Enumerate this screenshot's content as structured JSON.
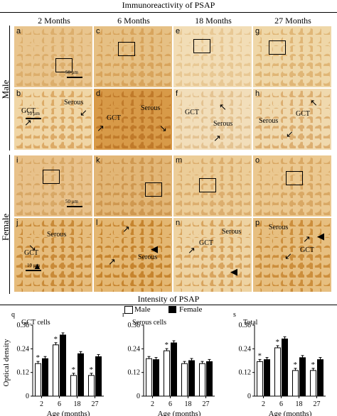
{
  "figure": {
    "top_title": "Immunoreactivity of PSAP",
    "columns": [
      "2 Months",
      "6 Months",
      "18 Months",
      "27 Months"
    ],
    "rows": [
      "Male",
      "Female"
    ],
    "panels": {
      "a": "a",
      "b": "b",
      "c": "c",
      "d": "d",
      "e": "e",
      "f": "f",
      "g": "g",
      "h": "h",
      "i": "i",
      "j": "j",
      "k": "k",
      "l": "l",
      "m": "m",
      "n": "n",
      "o": "o",
      "p": "p"
    },
    "tissue_labels": {
      "b_gct": "GCT",
      "b_serous": "Serous",
      "d_gct": "GCT",
      "d_serous": "Serous",
      "f_gct": "GCT",
      "f_serous": "Serous",
      "h_serous": "Serous",
      "h_gct": "GCT",
      "j_serous": "Serous",
      "j_gct": "GCT",
      "l_serous": "Serous",
      "n_serous": "Serous",
      "n_gct": "GCT",
      "p_serous": "Serous",
      "p_gct": "GCT"
    },
    "scale_bars": {
      "low_mag": "50 μm",
      "high_mag": "10 μm"
    },
    "colors": {
      "stain_light": "#e8c48a",
      "stain_dark": "#c8862e",
      "bg_tissue": "#f1dcb0"
    }
  },
  "intensity_title": "Intensity of PSAP",
  "legend": {
    "male": "Male",
    "female": "Female"
  },
  "y_axis_label": "Optical density",
  "chart_data": [
    {
      "type": "bar",
      "panel_letter": "q",
      "title": "GCT cells",
      "categories": [
        "2",
        "6",
        "18",
        "27"
      ],
      "xlabel": "Age (months)",
      "ylabel": "Optical density",
      "ylim": [
        0,
        0.36
      ],
      "yticks": [
        "0",
        "0.12",
        "0.24",
        "0.36"
      ],
      "series": [
        {
          "name": "Male",
          "values": [
            0.165,
            0.26,
            0.105,
            0.105
          ],
          "color": "#ffffff"
        },
        {
          "name": "Female",
          "values": [
            0.19,
            0.31,
            0.215,
            0.2
          ],
          "color": "#000000"
        }
      ],
      "significance": [
        "*",
        "*",
        "*",
        "*"
      ]
    },
    {
      "type": "bar",
      "panel_letter": "r",
      "title": "Serous cells",
      "categories": [
        "2",
        "6",
        "18",
        "27"
      ],
      "xlabel": "Age (months)",
      "ylabel": "",
      "ylim": [
        0,
        0.36
      ],
      "yticks": [
        "0",
        "0.12",
        "0.24",
        "0.36"
      ],
      "series": [
        {
          "name": "Male",
          "values": [
            0.19,
            0.23,
            0.165,
            0.165
          ],
          "color": "#ffffff"
        },
        {
          "name": "Female",
          "values": [
            0.185,
            0.27,
            0.18,
            0.175
          ],
          "color": "#000000"
        }
      ],
      "significance": [
        "",
        "*",
        "",
        ""
      ]
    },
    {
      "type": "bar",
      "panel_letter": "s",
      "title": "Total",
      "categories": [
        "2",
        "6",
        "18",
        "27"
      ],
      "xlabel": "Age (months)",
      "ylabel": "",
      "ylim": [
        0,
        0.36
      ],
      "yticks": [
        "0",
        "0.12",
        "0.24",
        "0.36"
      ],
      "series": [
        {
          "name": "Male",
          "values": [
            0.175,
            0.245,
            0.13,
            0.13
          ],
          "color": "#ffffff"
        },
        {
          "name": "Female",
          "values": [
            0.185,
            0.29,
            0.195,
            0.185
          ],
          "color": "#000000"
        }
      ],
      "significance": [
        "*",
        "*",
        "*",
        "*"
      ]
    }
  ]
}
